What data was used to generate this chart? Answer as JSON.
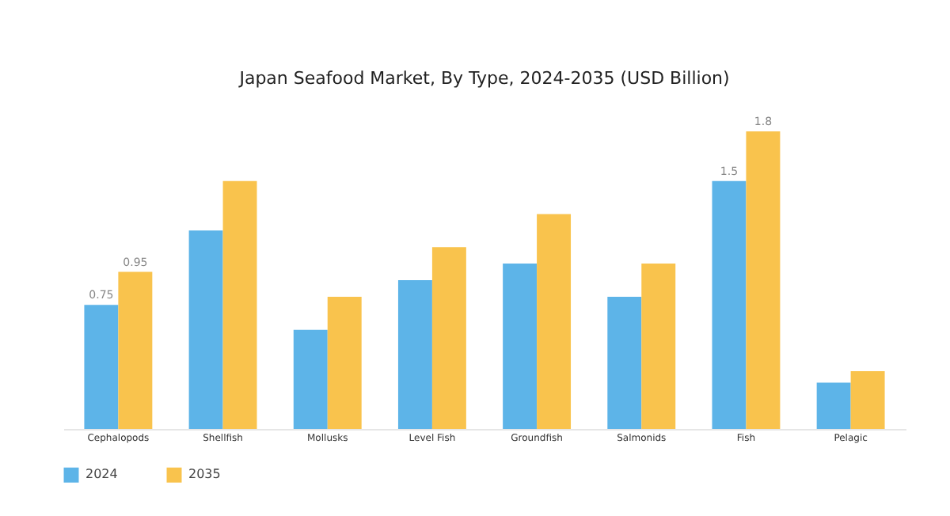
{
  "chart_data": {
    "type": "bar",
    "title": "Japan Seafood Market, By Type, 2024-2035 (USD Billion)",
    "categories": [
      "Cephalopods",
      "Shellfish",
      "Mollusks",
      "Level Fish",
      "Groundfish",
      "Salmonids",
      "Fish",
      "Pelagic"
    ],
    "series": [
      {
        "name": "2024",
        "color": "#5db4e8",
        "values": [
          0.75,
          1.2,
          0.6,
          0.9,
          1.0,
          0.8,
          1.5,
          0.28
        ],
        "value_labels": [
          "0.75",
          null,
          null,
          null,
          null,
          null,
          "1.5",
          null
        ]
      },
      {
        "name": "2035",
        "color": "#f9c34d",
        "values": [
          0.95,
          1.5,
          0.8,
          1.1,
          1.3,
          1.0,
          1.8,
          0.35
        ],
        "value_labels": [
          "0.95",
          null,
          null,
          null,
          null,
          null,
          "1.8",
          null
        ]
      }
    ],
    "legend": "bottom",
    "grid": false
  }
}
